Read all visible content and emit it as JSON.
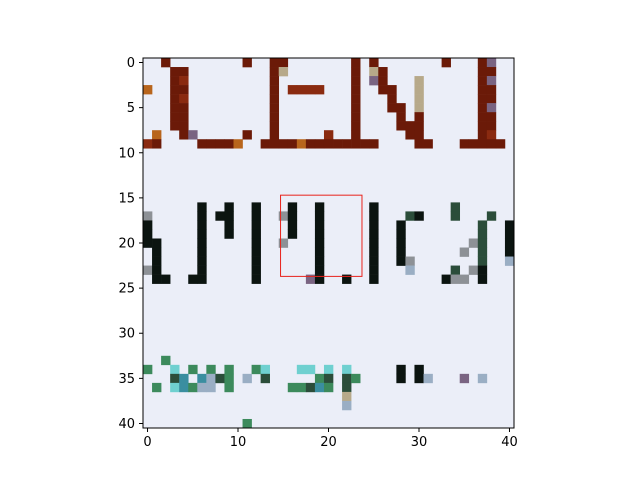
{
  "figure": {
    "background": "#ffffff",
    "canvas_color": "#e8edf6",
    "frame_color": "#000000"
  },
  "chart_data": {
    "type": "heatmap",
    "title": "",
    "xlabel": "",
    "ylabel": "",
    "image_extent_cells": [
      41,
      41
    ],
    "xlim": [
      -0.5,
      40.5
    ],
    "ylim": [
      40.5,
      -0.5
    ],
    "y_axis_inverted": true,
    "x_ticks": [
      0,
      10,
      20,
      30,
      40
    ],
    "x_tick_labels": [
      "0",
      "10",
      "20",
      "30",
      "40"
    ],
    "y_ticks": [
      0,
      5,
      10,
      15,
      20,
      25,
      30,
      35,
      40
    ],
    "y_tick_labels": [
      "0",
      "5",
      "10",
      "15",
      "20",
      "25",
      "30",
      "35",
      "40"
    ],
    "grid": false,
    "colors": {
      "bg": "#ebeef8",
      "brown": "#6b1a08",
      "red_brown": "#8a2a10",
      "tan": "#b7a98a",
      "black": "#0b1410",
      "dark_green": "#2b4d3a",
      "gray": "#8d9196",
      "purple": "#7a6482",
      "orange": "#b8651c",
      "green": "#3c8a5c",
      "teal": "#3a8ea0",
      "light_teal": "#6fd0d0",
      "steel": "#9aaec4"
    },
    "pixels": [
      {
        "x": 2,
        "y": 0,
        "c": "brown"
      },
      {
        "x": 11,
        "y": 0,
        "c": "brown"
      },
      {
        "x": 14,
        "y": 0,
        "c": "brown"
      },
      {
        "x": 15,
        "y": 0,
        "c": "brown"
      },
      {
        "x": 23,
        "y": 0,
        "c": "brown"
      },
      {
        "x": 25,
        "y": 0,
        "c": "brown"
      },
      {
        "x": 33,
        "y": 0,
        "c": "brown"
      },
      {
        "x": 37,
        "y": 0,
        "c": "brown"
      },
      {
        "x": 38,
        "y": 0,
        "c": "purple"
      },
      {
        "x": 3,
        "y": 1,
        "c": "brown"
      },
      {
        "x": 4,
        "y": 1,
        "c": "brown"
      },
      {
        "x": 14,
        "y": 1,
        "c": "brown"
      },
      {
        "x": 15,
        "y": 1,
        "c": "tan"
      },
      {
        "x": 23,
        "y": 1,
        "c": "brown"
      },
      {
        "x": 25,
        "y": 1,
        "c": "tan"
      },
      {
        "x": 26,
        "y": 1,
        "c": "brown"
      },
      {
        "x": 37,
        "y": 1,
        "c": "brown"
      },
      {
        "x": 38,
        "y": 1,
        "c": "brown"
      },
      {
        "x": 3,
        "y": 2,
        "c": "brown"
      },
      {
        "x": 4,
        "y": 2,
        "c": "red_brown"
      },
      {
        "x": 14,
        "y": 2,
        "c": "brown"
      },
      {
        "x": 23,
        "y": 2,
        "c": "brown"
      },
      {
        "x": 25,
        "y": 2,
        "c": "purple"
      },
      {
        "x": 26,
        "y": 2,
        "c": "brown"
      },
      {
        "x": 30,
        "y": 2,
        "c": "tan"
      },
      {
        "x": 37,
        "y": 2,
        "c": "brown"
      },
      {
        "x": 38,
        "y": 2,
        "c": "purple"
      },
      {
        "x": 0,
        "y": 3,
        "c": "orange"
      },
      {
        "x": 3,
        "y": 3,
        "c": "brown"
      },
      {
        "x": 4,
        "y": 3,
        "c": "brown"
      },
      {
        "x": 14,
        "y": 3,
        "c": "brown"
      },
      {
        "x": 16,
        "y": 3,
        "c": "red_brown"
      },
      {
        "x": 17,
        "y": 3,
        "c": "red_brown"
      },
      {
        "x": 18,
        "y": 3,
        "c": "red_brown"
      },
      {
        "x": 19,
        "y": 3,
        "c": "red_brown"
      },
      {
        "x": 23,
        "y": 3,
        "c": "brown"
      },
      {
        "x": 26,
        "y": 3,
        "c": "brown"
      },
      {
        "x": 27,
        "y": 3,
        "c": "brown"
      },
      {
        "x": 30,
        "y": 3,
        "c": "tan"
      },
      {
        "x": 37,
        "y": 3,
        "c": "brown"
      },
      {
        "x": 38,
        "y": 3,
        "c": "brown"
      },
      {
        "x": 3,
        "y": 4,
        "c": "brown"
      },
      {
        "x": 4,
        "y": 4,
        "c": "red_brown"
      },
      {
        "x": 14,
        "y": 4,
        "c": "brown"
      },
      {
        "x": 23,
        "y": 4,
        "c": "brown"
      },
      {
        "x": 27,
        "y": 4,
        "c": "brown"
      },
      {
        "x": 30,
        "y": 4,
        "c": "tan"
      },
      {
        "x": 37,
        "y": 4,
        "c": "brown"
      },
      {
        "x": 38,
        "y": 4,
        "c": "brown"
      },
      {
        "x": 3,
        "y": 5,
        "c": "brown"
      },
      {
        "x": 4,
        "y": 5,
        "c": "brown"
      },
      {
        "x": 14,
        "y": 5,
        "c": "brown"
      },
      {
        "x": 23,
        "y": 5,
        "c": "brown"
      },
      {
        "x": 27,
        "y": 5,
        "c": "brown"
      },
      {
        "x": 28,
        "y": 5,
        "c": "brown"
      },
      {
        "x": 30,
        "y": 5,
        "c": "tan"
      },
      {
        "x": 37,
        "y": 5,
        "c": "brown"
      },
      {
        "x": 38,
        "y": 5,
        "c": "purple"
      },
      {
        "x": 3,
        "y": 6,
        "c": "brown"
      },
      {
        "x": 4,
        "y": 6,
        "c": "brown"
      },
      {
        "x": 14,
        "y": 6,
        "c": "brown"
      },
      {
        "x": 23,
        "y": 6,
        "c": "brown"
      },
      {
        "x": 28,
        "y": 6,
        "c": "brown"
      },
      {
        "x": 30,
        "y": 6,
        "c": "brown"
      },
      {
        "x": 37,
        "y": 6,
        "c": "brown"
      },
      {
        "x": 38,
        "y": 6,
        "c": "brown"
      },
      {
        "x": 3,
        "y": 7,
        "c": "brown"
      },
      {
        "x": 4,
        "y": 7,
        "c": "brown"
      },
      {
        "x": 14,
        "y": 7,
        "c": "brown"
      },
      {
        "x": 23,
        "y": 7,
        "c": "brown"
      },
      {
        "x": 28,
        "y": 7,
        "c": "brown"
      },
      {
        "x": 29,
        "y": 7,
        "c": "brown"
      },
      {
        "x": 30,
        "y": 7,
        "c": "brown"
      },
      {
        "x": 37,
        "y": 7,
        "c": "brown"
      },
      {
        "x": 38,
        "y": 7,
        "c": "brown"
      },
      {
        "x": 1,
        "y": 8,
        "c": "orange"
      },
      {
        "x": 4,
        "y": 8,
        "c": "brown"
      },
      {
        "x": 5,
        "y": 8,
        "c": "purple"
      },
      {
        "x": 11,
        "y": 8,
        "c": "brown"
      },
      {
        "x": 14,
        "y": 8,
        "c": "brown"
      },
      {
        "x": 20,
        "y": 8,
        "c": "red_brown"
      },
      {
        "x": 23,
        "y": 8,
        "c": "brown"
      },
      {
        "x": 29,
        "y": 8,
        "c": "brown"
      },
      {
        "x": 30,
        "y": 8,
        "c": "brown"
      },
      {
        "x": 37,
        "y": 8,
        "c": "brown"
      },
      {
        "x": 38,
        "y": 8,
        "c": "red_brown"
      },
      {
        "x": 0,
        "y": 9,
        "c": "red_brown"
      },
      {
        "x": 1,
        "y": 9,
        "c": "brown"
      },
      {
        "x": 6,
        "y": 9,
        "c": "brown"
      },
      {
        "x": 7,
        "y": 9,
        "c": "brown"
      },
      {
        "x": 8,
        "y": 9,
        "c": "brown"
      },
      {
        "x": 9,
        "y": 9,
        "c": "brown"
      },
      {
        "x": 10,
        "y": 9,
        "c": "orange"
      },
      {
        "x": 13,
        "y": 9,
        "c": "brown"
      },
      {
        "x": 14,
        "y": 9,
        "c": "brown"
      },
      {
        "x": 15,
        "y": 9,
        "c": "brown"
      },
      {
        "x": 16,
        "y": 9,
        "c": "brown"
      },
      {
        "x": 17,
        "y": 9,
        "c": "orange"
      },
      {
        "x": 18,
        "y": 9,
        "c": "brown"
      },
      {
        "x": 19,
        "y": 9,
        "c": "brown"
      },
      {
        "x": 20,
        "y": 9,
        "c": "brown"
      },
      {
        "x": 21,
        "y": 9,
        "c": "brown"
      },
      {
        "x": 22,
        "y": 9,
        "c": "brown"
      },
      {
        "x": 23,
        "y": 9,
        "c": "brown"
      },
      {
        "x": 24,
        "y": 9,
        "c": "brown"
      },
      {
        "x": 25,
        "y": 9,
        "c": "brown"
      },
      {
        "x": 30,
        "y": 9,
        "c": "brown"
      },
      {
        "x": 31,
        "y": 9,
        "c": "brown"
      },
      {
        "x": 35,
        "y": 9,
        "c": "brown"
      },
      {
        "x": 36,
        "y": 9,
        "c": "brown"
      },
      {
        "x": 37,
        "y": 9,
        "c": "brown"
      },
      {
        "x": 38,
        "y": 9,
        "c": "brown"
      },
      {
        "x": 39,
        "y": 9,
        "c": "brown"
      },
      {
        "x": 6,
        "y": 16,
        "c": "black"
      },
      {
        "x": 9,
        "y": 16,
        "c": "black"
      },
      {
        "x": 12,
        "y": 16,
        "c": "black"
      },
      {
        "x": 16,
        "y": 16,
        "c": "black"
      },
      {
        "x": 19,
        "y": 16,
        "c": "black"
      },
      {
        "x": 25,
        "y": 16,
        "c": "black"
      },
      {
        "x": 34,
        "y": 16,
        "c": "dark_green"
      },
      {
        "x": 0,
        "y": 17,
        "c": "gray"
      },
      {
        "x": 6,
        "y": 17,
        "c": "black"
      },
      {
        "x": 8,
        "y": 17,
        "c": "black"
      },
      {
        "x": 9,
        "y": 17,
        "c": "black"
      },
      {
        "x": 12,
        "y": 17,
        "c": "black"
      },
      {
        "x": 15,
        "y": 17,
        "c": "gray"
      },
      {
        "x": 16,
        "y": 17,
        "c": "black"
      },
      {
        "x": 19,
        "y": 17,
        "c": "black"
      },
      {
        "x": 25,
        "y": 17,
        "c": "black"
      },
      {
        "x": 29,
        "y": 17,
        "c": "dark_green"
      },
      {
        "x": 30,
        "y": 17,
        "c": "black"
      },
      {
        "x": 34,
        "y": 17,
        "c": "dark_green"
      },
      {
        "x": 38,
        "y": 17,
        "c": "dark_green"
      },
      {
        "x": 0,
        "y": 18,
        "c": "black"
      },
      {
        "x": 6,
        "y": 18,
        "c": "black"
      },
      {
        "x": 9,
        "y": 18,
        "c": "black"
      },
      {
        "x": 12,
        "y": 18,
        "c": "black"
      },
      {
        "x": 16,
        "y": 18,
        "c": "black"
      },
      {
        "x": 19,
        "y": 18,
        "c": "black"
      },
      {
        "x": 25,
        "y": 18,
        "c": "black"
      },
      {
        "x": 28,
        "y": 18,
        "c": "black"
      },
      {
        "x": 37,
        "y": 18,
        "c": "dark_green"
      },
      {
        "x": 40,
        "y": 18,
        "c": "black"
      },
      {
        "x": 0,
        "y": 19,
        "c": "black"
      },
      {
        "x": 6,
        "y": 19,
        "c": "black"
      },
      {
        "x": 9,
        "y": 19,
        "c": "black"
      },
      {
        "x": 12,
        "y": 19,
        "c": "black"
      },
      {
        "x": 16,
        "y": 19,
        "c": "black"
      },
      {
        "x": 19,
        "y": 19,
        "c": "black"
      },
      {
        "x": 25,
        "y": 19,
        "c": "black"
      },
      {
        "x": 28,
        "y": 19,
        "c": "black"
      },
      {
        "x": 37,
        "y": 19,
        "c": "dark_green"
      },
      {
        "x": 40,
        "y": 19,
        "c": "black"
      },
      {
        "x": 0,
        "y": 20,
        "c": "black"
      },
      {
        "x": 1,
        "y": 20,
        "c": "black"
      },
      {
        "x": 6,
        "y": 20,
        "c": "black"
      },
      {
        "x": 12,
        "y": 20,
        "c": "black"
      },
      {
        "x": 15,
        "y": 20,
        "c": "gray"
      },
      {
        "x": 19,
        "y": 20,
        "c": "black"
      },
      {
        "x": 25,
        "y": 20,
        "c": "black"
      },
      {
        "x": 28,
        "y": 20,
        "c": "black"
      },
      {
        "x": 36,
        "y": 20,
        "c": "gray"
      },
      {
        "x": 37,
        "y": 20,
        "c": "dark_green"
      },
      {
        "x": 40,
        "y": 20,
        "c": "black"
      },
      {
        "x": 1,
        "y": 21,
        "c": "black"
      },
      {
        "x": 6,
        "y": 21,
        "c": "black"
      },
      {
        "x": 12,
        "y": 21,
        "c": "black"
      },
      {
        "x": 19,
        "y": 21,
        "c": "black"
      },
      {
        "x": 25,
        "y": 21,
        "c": "black"
      },
      {
        "x": 28,
        "y": 21,
        "c": "black"
      },
      {
        "x": 35,
        "y": 21,
        "c": "gray"
      },
      {
        "x": 37,
        "y": 21,
        "c": "dark_green"
      },
      {
        "x": 40,
        "y": 21,
        "c": "black"
      },
      {
        "x": 1,
        "y": 22,
        "c": "black"
      },
      {
        "x": 6,
        "y": 22,
        "c": "black"
      },
      {
        "x": 12,
        "y": 22,
        "c": "black"
      },
      {
        "x": 19,
        "y": 22,
        "c": "black"
      },
      {
        "x": 25,
        "y": 22,
        "c": "black"
      },
      {
        "x": 28,
        "y": 22,
        "c": "black"
      },
      {
        "x": 29,
        "y": 22,
        "c": "gray"
      },
      {
        "x": 37,
        "y": 22,
        "c": "dark_green"
      },
      {
        "x": 40,
        "y": 22,
        "c": "steel"
      },
      {
        "x": 0,
        "y": 23,
        "c": "gray"
      },
      {
        "x": 1,
        "y": 23,
        "c": "black"
      },
      {
        "x": 6,
        "y": 23,
        "c": "black"
      },
      {
        "x": 12,
        "y": 23,
        "c": "black"
      },
      {
        "x": 19,
        "y": 23,
        "c": "black"
      },
      {
        "x": 25,
        "y": 23,
        "c": "black"
      },
      {
        "x": 29,
        "y": 23,
        "c": "steel"
      },
      {
        "x": 34,
        "y": 23,
        "c": "dark_green"
      },
      {
        "x": 36,
        "y": 23,
        "c": "gray"
      },
      {
        "x": 37,
        "y": 23,
        "c": "black"
      },
      {
        "x": 1,
        "y": 24,
        "c": "black"
      },
      {
        "x": 2,
        "y": 24,
        "c": "black"
      },
      {
        "x": 5,
        "y": 24,
        "c": "black"
      },
      {
        "x": 6,
        "y": 24,
        "c": "black"
      },
      {
        "x": 12,
        "y": 24,
        "c": "black"
      },
      {
        "x": 18,
        "y": 24,
        "c": "purple"
      },
      {
        "x": 19,
        "y": 24,
        "c": "black"
      },
      {
        "x": 22,
        "y": 24,
        "c": "black"
      },
      {
        "x": 25,
        "y": 24,
        "c": "black"
      },
      {
        "x": 33,
        "y": 24,
        "c": "black"
      },
      {
        "x": 34,
        "y": 24,
        "c": "gray"
      },
      {
        "x": 35,
        "y": 24,
        "c": "gray"
      },
      {
        "x": 37,
        "y": 24,
        "c": "black"
      },
      {
        "x": 2,
        "y": 33,
        "c": "green"
      },
      {
        "x": 0,
        "y": 34,
        "c": "green"
      },
      {
        "x": 3,
        "y": 34,
        "c": "light_teal"
      },
      {
        "x": 5,
        "y": 34,
        "c": "green"
      },
      {
        "x": 7,
        "y": 34,
        "c": "green"
      },
      {
        "x": 9,
        "y": 34,
        "c": "green"
      },
      {
        "x": 12,
        "y": 34,
        "c": "green"
      },
      {
        "x": 13,
        "y": 34,
        "c": "light_teal"
      },
      {
        "x": 17,
        "y": 34,
        "c": "light_teal"
      },
      {
        "x": 18,
        "y": 34,
        "c": "light_teal"
      },
      {
        "x": 20,
        "y": 34,
        "c": "light_teal"
      },
      {
        "x": 22,
        "y": 34,
        "c": "light_teal"
      },
      {
        "x": 28,
        "y": 34,
        "c": "black"
      },
      {
        "x": 30,
        "y": 34,
        "c": "black"
      },
      {
        "x": 3,
        "y": 35,
        "c": "dark_green"
      },
      {
        "x": 4,
        "y": 35,
        "c": "teal"
      },
      {
        "x": 6,
        "y": 35,
        "c": "teal"
      },
      {
        "x": 7,
        "y": 35,
        "c": "steel"
      },
      {
        "x": 8,
        "y": 35,
        "c": "dark_green"
      },
      {
        "x": 9,
        "y": 35,
        "c": "green"
      },
      {
        "x": 11,
        "y": 35,
        "c": "steel"
      },
      {
        "x": 13,
        "y": 35,
        "c": "dark_green"
      },
      {
        "x": 19,
        "y": 35,
        "c": "green"
      },
      {
        "x": 20,
        "y": 35,
        "c": "dark_green"
      },
      {
        "x": 22,
        "y": 35,
        "c": "dark_green"
      },
      {
        "x": 23,
        "y": 35,
        "c": "green"
      },
      {
        "x": 28,
        "y": 35,
        "c": "black"
      },
      {
        "x": 30,
        "y": 35,
        "c": "black"
      },
      {
        "x": 31,
        "y": 35,
        "c": "steel"
      },
      {
        "x": 35,
        "y": 35,
        "c": "purple"
      },
      {
        "x": 37,
        "y": 35,
        "c": "steel"
      },
      {
        "x": 1,
        "y": 36,
        "c": "green"
      },
      {
        "x": 3,
        "y": 36,
        "c": "light_teal"
      },
      {
        "x": 4,
        "y": 36,
        "c": "teal"
      },
      {
        "x": 5,
        "y": 36,
        "c": "green"
      },
      {
        "x": 6,
        "y": 36,
        "c": "steel"
      },
      {
        "x": 7,
        "y": 36,
        "c": "steel"
      },
      {
        "x": 9,
        "y": 36,
        "c": "green"
      },
      {
        "x": 16,
        "y": 36,
        "c": "green"
      },
      {
        "x": 17,
        "y": 36,
        "c": "green"
      },
      {
        "x": 18,
        "y": 36,
        "c": "dark_green"
      },
      {
        "x": 19,
        "y": 36,
        "c": "teal"
      },
      {
        "x": 20,
        "y": 36,
        "c": "green"
      },
      {
        "x": 22,
        "y": 36,
        "c": "dark_green"
      },
      {
        "x": 22,
        "y": 37,
        "c": "tan"
      },
      {
        "x": 22,
        "y": 38,
        "c": "steel"
      },
      {
        "x": 11,
        "y": 40,
        "c": "green"
      }
    ],
    "annotations": [
      {
        "type": "rectangle",
        "x0": 14.7,
        "y0": 14.7,
        "x1": 23.7,
        "y1": 23.7,
        "stroke": "#e8221b"
      }
    ]
  }
}
